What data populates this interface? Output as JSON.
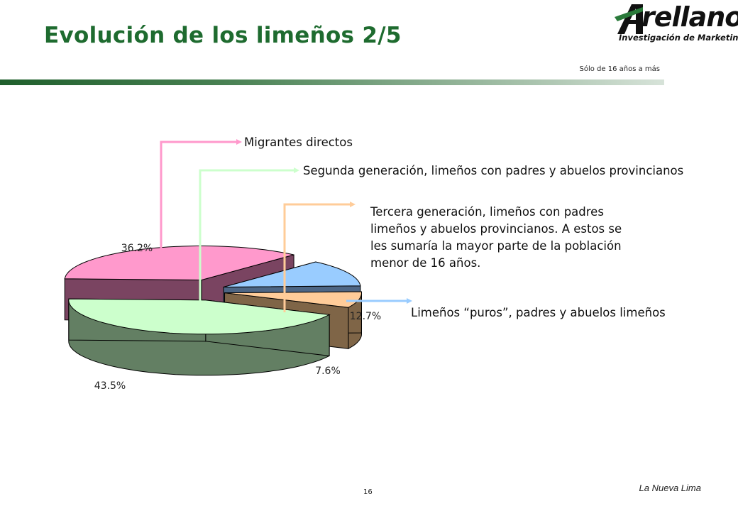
{
  "header": {
    "title": "Evolución de los limeños 2/5",
    "note": "Sólo de 16 años a más"
  },
  "logo": {
    "name": "rellano",
    "subtitle": "Investigación de Marketing"
  },
  "chart_data": {
    "type": "pie",
    "title": "",
    "slices": [
      {
        "label": "Migrantes directos",
        "label_lines": [
          "Migrantes directos"
        ],
        "value": 36.2,
        "value_label": "36.2%",
        "color": "#ff99cc",
        "side_color": "#7a4461"
      },
      {
        "label": "Limeños “puros”, padres y abuelos limeños",
        "label_lines": [
          "Limeños “puros”, padres y abuelos limeños"
        ],
        "value": 12.7,
        "value_label": "12.7%",
        "color": "#99ccff",
        "side_color": "#4d6685"
      },
      {
        "label": "Tercera generación, limeños con padres limeños y abuelos provincianos. A estos se les sumaría la mayor parte de la población menor de 16 años.",
        "label_lines": [
          "Tercera generación, limeños con padres",
          "limeños y abuelos provincianos. A estos se",
          "les sumaría la mayor parte de la población",
          "menor de 16 años."
        ],
        "value": 7.6,
        "value_label": "7.6%",
        "color": "#ffcc99",
        "side_color": "#7f6547"
      },
      {
        "label": "Segunda generación, limeños con padres y abuelos provincianos",
        "label_lines": [
          "Segunda generación, limeños con padres y abuelos provincianos"
        ],
        "value": 43.5,
        "value_label": "43.5%",
        "color": "#ccffcc",
        "side_color": "#637f63"
      }
    ]
  },
  "footer": {
    "page_number": "16",
    "doc_name": "La Nueva Lima"
  }
}
